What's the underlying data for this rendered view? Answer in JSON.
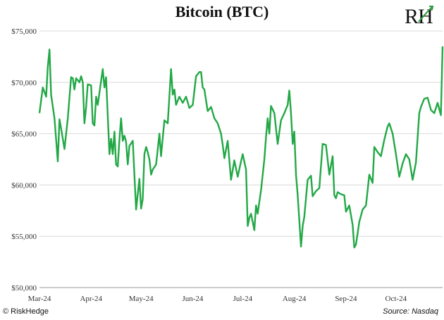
{
  "chart_data": {
    "type": "line",
    "title": "Bitcoin (BTC)",
    "xlabel": "",
    "ylabel": "",
    "ylim": [
      50000,
      75000
    ],
    "yticks": [
      {
        "value": 50000,
        "label": "$50,000"
      },
      {
        "value": 55000,
        "label": "$55,000"
      },
      {
        "value": 60000,
        "label": "$60,000"
      },
      {
        "value": 65000,
        "label": "$65,000"
      },
      {
        "value": 70000,
        "label": "$70,000"
      },
      {
        "value": 75000,
        "label": "$75,000"
      }
    ],
    "xticks": [
      {
        "date": "2024-03-01",
        "label": "Mar-24"
      },
      {
        "date": "2024-04-01",
        "label": "Apr-24"
      },
      {
        "date": "2024-05-01",
        "label": "May-24"
      },
      {
        "date": "2024-06-01",
        "label": "Jun-24"
      },
      {
        "date": "2024-07-01",
        "label": "Jul-24"
      },
      {
        "date": "2024-08-01",
        "label": "Aug-24"
      },
      {
        "date": "2024-09-01",
        "label": "Sep-24"
      },
      {
        "date": "2024-10-01",
        "label": "Oct-24"
      }
    ],
    "grid": "horizontal",
    "line_color": "#22a846",
    "series": [
      {
        "x": [
          "2024-03-01",
          "2024-03-03",
          "2024-03-05",
          "2024-03-06",
          "2024-03-07",
          "2024-03-08",
          "2024-03-10",
          "2024-03-12",
          "2024-03-13",
          "2024-03-14",
          "2024-03-16",
          "2024-03-18",
          "2024-03-20",
          "2024-03-21",
          "2024-03-22",
          "2024-03-23",
          "2024-03-25",
          "2024-03-26",
          "2024-03-27",
          "2024-03-28",
          "2024-03-29",
          "2024-03-30",
          "2024-04-01",
          "2024-04-02",
          "2024-04-03",
          "2024-04-04",
          "2024-04-05",
          "2024-04-08",
          "2024-04-09",
          "2024-04-10",
          "2024-04-12",
          "2024-04-13",
          "2024-04-14",
          "2024-04-15",
          "2024-04-16",
          "2024-04-17",
          "2024-04-18",
          "2024-04-19",
          "2024-04-20",
          "2024-04-21",
          "2024-04-22",
          "2024-04-23",
          "2024-04-24",
          "2024-04-26",
          "2024-04-28",
          "2024-04-30",
          "2024-05-01",
          "2024-05-02",
          "2024-05-03",
          "2024-05-04",
          "2024-05-05",
          "2024-05-06",
          "2024-05-07",
          "2024-05-08",
          "2024-05-10",
          "2024-05-12",
          "2024-05-13",
          "2024-05-15",
          "2024-05-17",
          "2024-05-19",
          "2024-05-20",
          "2024-05-21",
          "2024-05-22",
          "2024-05-24",
          "2024-05-26",
          "2024-05-28",
          "2024-05-30",
          "2024-06-01",
          "2024-06-03",
          "2024-06-05",
          "2024-06-06",
          "2024-06-07",
          "2024-06-08",
          "2024-06-10",
          "2024-06-12",
          "2024-06-14",
          "2024-06-16",
          "2024-06-18",
          "2024-06-19",
          "2024-06-20",
          "2024-06-22",
          "2024-06-24",
          "2024-06-26",
          "2024-06-28",
          "2024-06-30",
          "2024-07-01",
          "2024-07-03",
          "2024-07-04",
          "2024-07-05",
          "2024-07-06",
          "2024-07-08",
          "2024-07-09",
          "2024-07-10",
          "2024-07-12",
          "2024-07-14",
          "2024-07-15",
          "2024-07-16",
          "2024-07-17",
          "2024-07-18",
          "2024-07-20",
          "2024-07-22",
          "2024-07-24",
          "2024-07-26",
          "2024-07-28",
          "2024-07-29",
          "2024-07-30",
          "2024-07-31",
          "2024-08-01",
          "2024-08-02",
          "2024-08-03",
          "2024-08-05",
          "2024-08-06",
          "2024-08-07",
          "2024-08-09",
          "2024-08-11",
          "2024-08-12",
          "2024-08-14",
          "2024-08-16",
          "2024-08-18",
          "2024-08-20",
          "2024-08-22",
          "2024-08-24",
          "2024-08-25",
          "2024-08-26",
          "2024-08-27",
          "2024-08-29",
          "2024-08-31",
          "2024-09-01",
          "2024-09-03",
          "2024-09-05",
          "2024-09-06",
          "2024-09-07",
          "2024-09-09",
          "2024-09-11",
          "2024-09-13",
          "2024-09-15",
          "2024-09-17",
          "2024-09-18",
          "2024-09-20",
          "2024-09-22",
          "2024-09-24",
          "2024-09-26",
          "2024-09-27",
          "2024-09-29",
          "2024-10-01",
          "2024-10-03",
          "2024-10-05",
          "2024-10-07",
          "2024-10-09",
          "2024-10-11",
          "2024-10-13",
          "2024-10-15",
          "2024-10-16",
          "2024-10-18",
          "2024-10-20",
          "2024-10-22",
          "2024-10-24",
          "2024-10-26",
          "2024-10-28",
          "2024-10-29"
        ],
        "y": [
          67000,
          69500,
          68600,
          71500,
          73200,
          68800,
          66500,
          62300,
          66400,
          65500,
          63500,
          66500,
          70500,
          70400,
          69300,
          70400,
          70000,
          70600,
          70000,
          66000,
          67600,
          69800,
          69700,
          66000,
          65800,
          68600,
          67800,
          71300,
          69500,
          70500,
          63000,
          64500,
          63000,
          65200,
          62000,
          61800,
          64500,
          66500,
          64300,
          64800,
          64200,
          62000,
          63800,
          64300,
          57600,
          60600,
          57700,
          58600,
          63000,
          63700,
          63200,
          62500,
          61000,
          61500,
          62000,
          65000,
          62800,
          66300,
          66000,
          71300,
          68800,
          69300,
          67800,
          68600,
          68000,
          68600,
          67500,
          67800,
          70600,
          71000,
          71000,
          69500,
          69300,
          67200,
          67600,
          66500,
          66000,
          65000,
          63900,
          62600,
          64300,
          60500,
          62400,
          60800,
          62300,
          63000,
          61500,
          56000,
          56800,
          57200,
          55600,
          58000,
          57200,
          59500,
          62500,
          64700,
          66500,
          65000,
          67700,
          67000,
          64000,
          66300,
          67000,
          67800,
          69200,
          67000,
          64000,
          65200,
          61000,
          59000,
          54000,
          56000,
          56900,
          60500,
          60900,
          58900,
          59400,
          59700,
          64000,
          63900,
          61000,
          62800,
          59000,
          58700,
          59300,
          59100,
          59000,
          57400,
          58000,
          56100,
          53900,
          54200,
          56400,
          57600,
          58000,
          61000,
          60200,
          63700,
          63200,
          62800,
          64400,
          65700,
          66000,
          65000,
          63000,
          60800,
          62100,
          63000,
          62500,
          60500,
          62200,
          67000,
          67600,
          68400,
          68500,
          67300,
          67000,
          68000,
          66800,
          73500
        ]
      }
    ]
  },
  "footer": {
    "copyright": "© RiskHedge",
    "source": "Source: Nasdaq"
  },
  "logo": {
    "text": "RH"
  }
}
